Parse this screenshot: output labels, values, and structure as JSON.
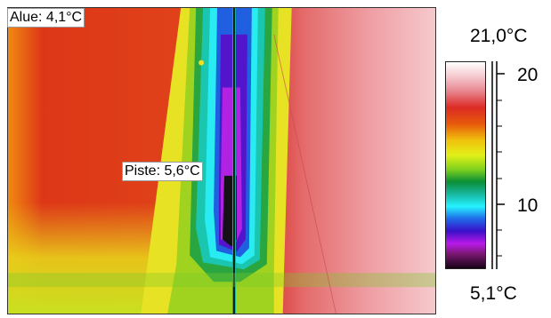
{
  "measurements": {
    "area_label": "Alue: 4,1°C",
    "spot_label": "Piste: 5,6°C"
  },
  "scale": {
    "max_label": "21,0°C",
    "min_label": "5,1°C",
    "tick_labels": [
      "20",
      "10"
    ],
    "range_c": [
      5.1,
      21.0
    ]
  },
  "colors": {
    "hot": "#d8342a",
    "warm_orange": "#e66a10",
    "yellow": "#e8e81e",
    "green": "#1aa33a",
    "cyan": "#26e4ee",
    "blue": "#1d45d6",
    "purple": "#8d1bd8",
    "black": "#141014",
    "pink": "#eea7ab"
  }
}
